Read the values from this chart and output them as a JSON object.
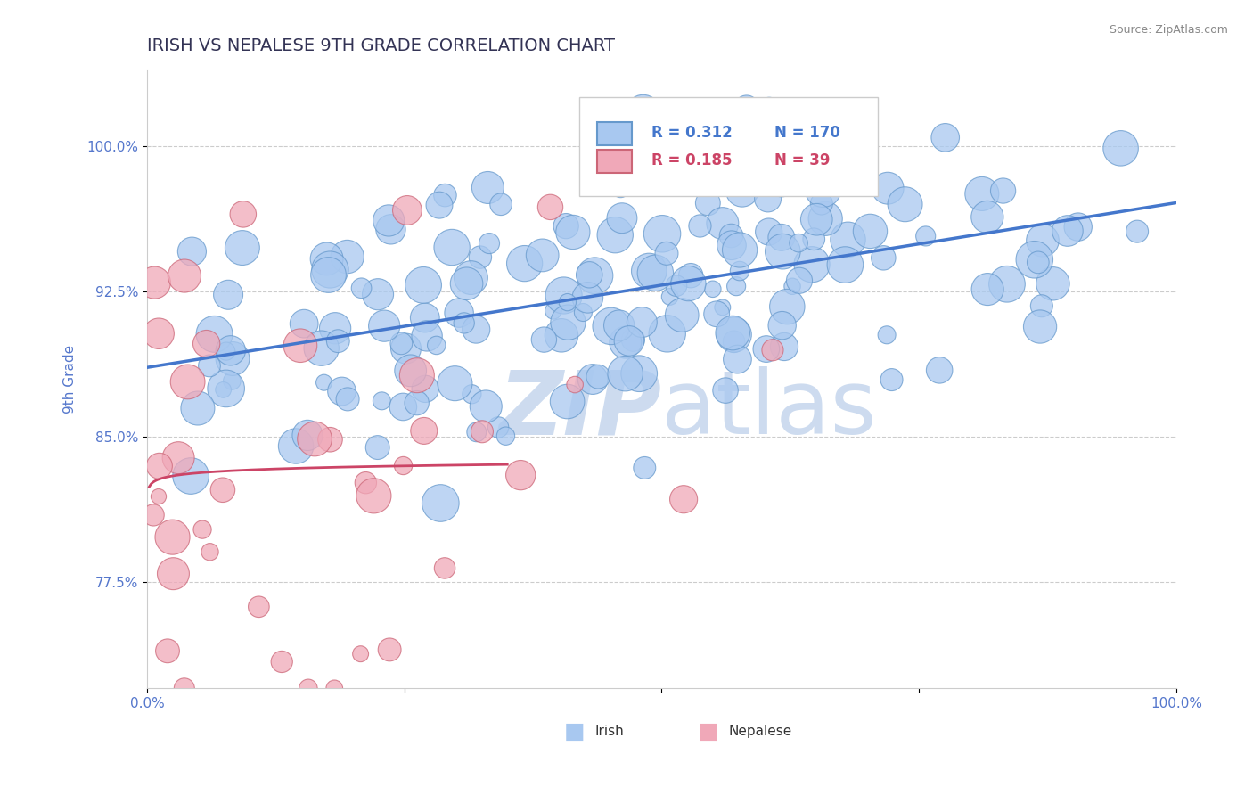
{
  "title": "IRISH VS NEPALESE 9TH GRADE CORRELATION CHART",
  "source": "Source: ZipAtlas.com",
  "ylabel": "9th Grade",
  "yticks": [
    0.775,
    0.85,
    0.925,
    1.0
  ],
  "ytick_labels": [
    "77.5%",
    "85.0%",
    "92.5%",
    "100.0%"
  ],
  "xlim": [
    0.0,
    1.0
  ],
  "ylim": [
    0.72,
    1.04
  ],
  "irish_R": 0.312,
  "irish_N": 170,
  "nepalese_R": 0.185,
  "nepalese_N": 39,
  "irish_color": "#a8c8f0",
  "irish_edge_color": "#6699cc",
  "nepalese_color": "#f0a8b8",
  "nepalese_edge_color": "#cc6677",
  "trend_color_irish": "#4477cc",
  "trend_color_nepalese": "#cc4466",
  "background_color": "#ffffff",
  "watermark_zip": "ZIP",
  "watermark_atlas": "atlas",
  "watermark_color_zip": "#c8d8ee",
  "watermark_color_atlas": "#c8d8ee",
  "grid_color": "#cccccc",
  "title_color": "#333355",
  "axis_label_color": "#5577cc",
  "irish_seed": 42,
  "nepalese_seed": 123
}
